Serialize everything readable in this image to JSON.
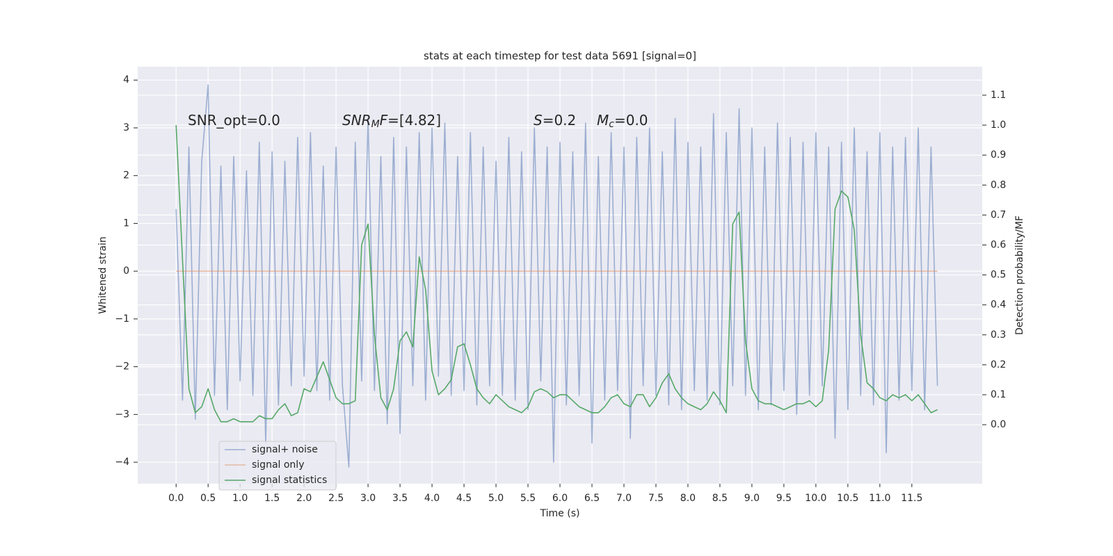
{
  "chart_data": {
    "type": "line",
    "title": "stats at each timestep for test data 5691 [signal=0]",
    "x_label": "Time (s)",
    "y_label": "Whitened strain",
    "y2_label": "Detection probability/MF",
    "annotations": [
      [
        {
          "text": "SNR_opt=0.0"
        }
      ],
      [
        {
          "text": "SNR",
          "italic": true
        },
        {
          "text": "M",
          "italic": true,
          "sub": true
        },
        {
          "text": "F",
          "italic": true
        },
        {
          "text": "=[4.82]"
        }
      ],
      [
        {
          "text": "S",
          "italic": true
        },
        {
          "text": "=0.2"
        }
      ],
      [
        {
          "text": "M",
          "italic": true
        },
        {
          "text": "c",
          "italic": true,
          "sub": true
        },
        {
          "text": "=0.0"
        }
      ]
    ],
    "grid": true,
    "legend": "lower left",
    "xlim": [
      -0.6,
      12.6
    ],
    "ylim": [
      -4.45,
      4.28
    ],
    "y2lim": [
      -0.197,
      1.195
    ],
    "xticks": [
      {
        "value": 0,
        "label": "0.0"
      },
      0.5,
      {
        "value": 1,
        "label": "1.0"
      },
      1.5,
      {
        "value": 2,
        "label": "2.0"
      },
      2.5,
      {
        "value": 3,
        "label": "3.0"
      },
      3.5,
      {
        "value": 4,
        "label": "4.0"
      },
      4.5,
      {
        "value": 5,
        "label": "5.0"
      },
      5.5,
      {
        "value": 6,
        "label": "6.0"
      },
      6.5,
      {
        "value": 7,
        "label": "7.0"
      },
      7.5,
      {
        "value": 8,
        "label": "8.0"
      },
      8.5,
      {
        "value": 9,
        "label": "9.0"
      },
      9.5,
      {
        "value": 10,
        "label": "10.0"
      },
      10.5,
      {
        "value": 11,
        "label": "11.0"
      },
      11.5
    ],
    "yticks": [
      {
        "value": -4,
        "label": "−4"
      },
      {
        "value": -3,
        "label": "−3"
      },
      {
        "value": -2,
        "label": "−2"
      },
      {
        "value": -1,
        "label": "−1"
      },
      0,
      1,
      2,
      3,
      4
    ],
    "y2ticks": [
      {
        "value": 0,
        "label": "0.0"
      },
      0.1,
      0.2,
      0.3,
      0.4,
      0.5,
      0.6,
      0.7,
      0.8,
      0.9,
      {
        "value": 1,
        "label": "1.0"
      },
      1.1
    ],
    "x": [
      0,
      0.1,
      0.2,
      0.3,
      0.4,
      0.5,
      0.6,
      0.7,
      0.8,
      0.9,
      1,
      1.1,
      1.2,
      1.3,
      1.4,
      1.5,
      1.6,
      1.7,
      1.8,
      1.9,
      2,
      2.1,
      2.2,
      2.3,
      2.4,
      2.5,
      2.6,
      2.7,
      2.8,
      2.9,
      3,
      3.1,
      3.2,
      3.3,
      3.4,
      3.5,
      3.6,
      3.7,
      3.8,
      3.9,
      4,
      4.1,
      4.2,
      4.3,
      4.4,
      4.5,
      4.6,
      4.7,
      4.8,
      4.9,
      5,
      5.1,
      5.2,
      5.3,
      5.4,
      5.5,
      5.6,
      5.7,
      5.8,
      5.9,
      6,
      6.1,
      6.2,
      6.3,
      6.4,
      6.5,
      6.6,
      6.7,
      6.8,
      6.9,
      7,
      7.1,
      7.2,
      7.3,
      7.4,
      7.5,
      7.6,
      7.7,
      7.8,
      7.9,
      8,
      8.1,
      8.2,
      8.3,
      8.4,
      8.5,
      8.6,
      8.7,
      8.8,
      8.9,
      9,
      9.1,
      9.2,
      9.3,
      9.4,
      9.5,
      9.6,
      9.7,
      9.8,
      9.9,
      10,
      10.1,
      10.2,
      10.3,
      10.4,
      10.5,
      10.6,
      10.7,
      10.8,
      10.9,
      11,
      11.1,
      11.2,
      11.3,
      11.4,
      11.5,
      11.6,
      11.7,
      11.8,
      11.9
    ],
    "series": [
      {
        "name": "signal+ noise",
        "color": "#4c72b0",
        "opacity": 0.5,
        "values": [
          1.3,
          -2.7,
          2.6,
          -3.1,
          2.3,
          3.9,
          -2.6,
          2.2,
          -2.9,
          2.4,
          -2.3,
          2.1,
          -2.6,
          2.7,
          -3.6,
          2.5,
          -2.8,
          2.3,
          -2.4,
          2.8,
          -2.2,
          2.9,
          -2.5,
          2.2,
          -2.7,
          2.6,
          -2.4,
          -4.1,
          2.7,
          -2.3,
          3.2,
          -2.5,
          2.4,
          -3.2,
          2.8,
          -3.4,
          2.6,
          -2.4,
          2.9,
          -2.7,
          3.0,
          -2.2,
          3.1,
          -2.6,
          2.4,
          -2.5,
          2.9,
          -2.8,
          2.6,
          -2.4,
          2.3,
          -2.6,
          2.8,
          -2.7,
          2.5,
          -2.9,
          3.0,
          -2.3,
          2.6,
          -4.0,
          2.7,
          -2.8,
          2.5,
          -2.6,
          3.1,
          -3.6,
          2.4,
          -2.7,
          2.9,
          -2.5,
          2.6,
          -3.5,
          2.8,
          -2.4,
          3.0,
          -2.6,
          2.5,
          -2.8,
          3.2,
          -2.9,
          2.7,
          -2.5,
          2.6,
          -2.7,
          3.3,
          -2.8,
          2.9,
          -2.4,
          3.4,
          -2.6,
          3.0,
          -2.9,
          2.6,
          -2.8,
          3.1,
          -2.5,
          2.8,
          -3.0,
          2.7,
          -2.6,
          2.9,
          -2.4,
          2.6,
          -3.5,
          2.7,
          -2.9,
          3.0,
          -2.6,
          2.5,
          -2.8,
          2.9,
          -3.8,
          2.6,
          -2.7,
          2.8,
          -2.5,
          3.0,
          -2.9,
          2.6,
          -2.4
        ]
      },
      {
        "name": "signal only",
        "color": "#dd8452",
        "opacity": 0.5,
        "values": [
          0,
          0,
          0,
          0,
          0,
          0,
          0,
          0,
          0,
          0,
          0,
          0,
          0,
          0,
          0,
          0,
          0,
          0,
          0,
          0,
          0,
          0,
          0,
          0,
          0,
          0,
          0,
          0,
          0,
          0,
          0,
          0,
          0,
          0,
          0,
          0,
          0,
          0,
          0,
          0,
          0,
          0,
          0,
          0,
          0,
          0,
          0,
          0,
          0,
          0,
          0,
          0,
          0,
          0,
          0,
          0,
          0,
          0,
          0,
          0,
          0,
          0,
          0,
          0,
          0,
          0,
          0,
          0,
          0,
          0,
          0,
          0,
          0,
          0,
          0,
          0,
          0,
          0,
          0,
          0,
          0,
          0,
          0,
          0,
          0,
          0,
          0,
          0,
          0,
          0,
          0,
          0,
          0,
          0,
          0,
          0,
          0,
          0,
          0,
          0,
          0,
          0,
          0,
          0,
          0,
          0,
          0,
          0,
          0,
          0,
          0,
          0,
          0,
          0,
          0,
          0,
          0,
          0,
          0,
          0
        ]
      },
      {
        "name": "signal statistics",
        "color": "#55a868",
        "opacity": 1,
        "axis": "y2",
        "values": [
          1.0,
          0.55,
          0.12,
          0.04,
          0.06,
          0.12,
          0.05,
          0.01,
          0.01,
          0.02,
          0.01,
          0.01,
          0.01,
          0.03,
          0.02,
          0.02,
          0.05,
          0.07,
          0.03,
          0.04,
          0.12,
          0.11,
          0.16,
          0.21,
          0.15,
          0.09,
          0.07,
          0.07,
          0.08,
          0.6,
          0.67,
          0.3,
          0.09,
          0.05,
          0.12,
          0.28,
          0.31,
          0.26,
          0.56,
          0.45,
          0.18,
          0.1,
          0.12,
          0.15,
          0.26,
          0.27,
          0.2,
          0.12,
          0.09,
          0.07,
          0.1,
          0.08,
          0.06,
          0.05,
          0.04,
          0.06,
          0.11,
          0.12,
          0.11,
          0.09,
          0.1,
          0.1,
          0.08,
          0.06,
          0.05,
          0.04,
          0.04,
          0.06,
          0.09,
          0.1,
          0.07,
          0.06,
          0.1,
          0.1,
          0.06,
          0.09,
          0.14,
          0.17,
          0.12,
          0.09,
          0.07,
          0.06,
          0.05,
          0.07,
          0.11,
          0.08,
          0.04,
          0.67,
          0.71,
          0.28,
          0.12,
          0.08,
          0.07,
          0.07,
          0.06,
          0.05,
          0.06,
          0.07,
          0.07,
          0.08,
          0.06,
          0.08,
          0.25,
          0.72,
          0.78,
          0.76,
          0.65,
          0.3,
          0.14,
          0.12,
          0.09,
          0.08,
          0.1,
          0.09,
          0.1,
          0.08,
          0.1,
          0.07,
          0.04,
          0.05
        ]
      }
    ]
  }
}
